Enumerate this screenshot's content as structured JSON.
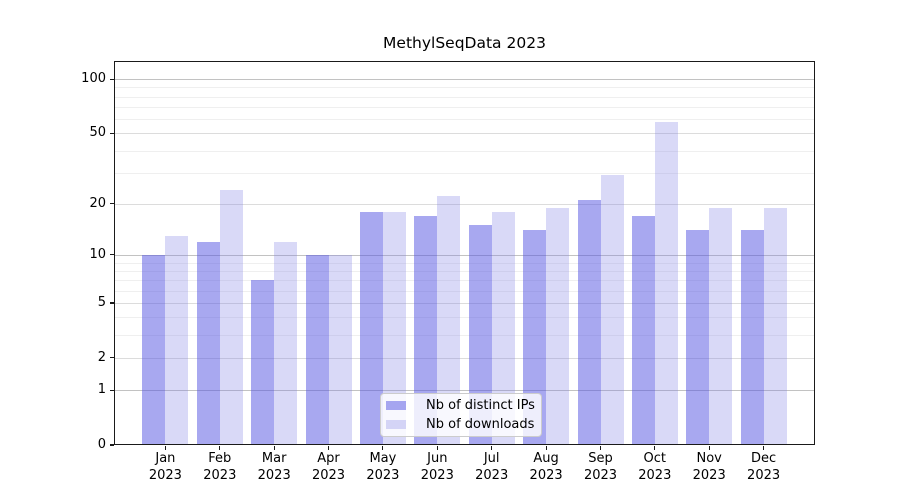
{
  "page": {
    "background": "#ffffff"
  },
  "chart_data": {
    "type": "bar",
    "title": "MethylSeqData 2023",
    "categories": [
      "Jan",
      "Feb",
      "Mar",
      "Apr",
      "May",
      "Jun",
      "Jul",
      "Aug",
      "Sep",
      "Oct",
      "Nov",
      "Dec"
    ],
    "category_year": "2023",
    "series": [
      {
        "key": "distinct-ips",
        "name": "Nb of distinct IPs",
        "color": "rgba(81,81,225,0.50)",
        "values": [
          10,
          12,
          7,
          10,
          18,
          17,
          15,
          14,
          21,
          17,
          14,
          14
        ]
      },
      {
        "key": "downloads",
        "name": "Nb of downloads",
        "color": "rgba(128,128,228,0.30)",
        "values": [
          13,
          24,
          12,
          10,
          18,
          22,
          18,
          19,
          29,
          58,
          19,
          19
        ]
      }
    ],
    "y_axis": {
      "scale": "log1p",
      "tick_values": [
        0,
        1,
        2,
        5,
        10,
        20,
        50,
        100
      ],
      "emphasized_ticks": [
        1,
        10,
        100
      ],
      "minor_gridlines": [
        3,
        4,
        6,
        7,
        8,
        9,
        30,
        40,
        60,
        70,
        80,
        90
      ],
      "max": 126,
      "ylim": [
        0,
        126
      ]
    },
    "x_axis": {
      "ticks_per_month": true
    },
    "legend": {
      "position": "bottom-center"
    },
    "grid": true,
    "colors": {
      "grid_major": "#c2c2c2",
      "grid_labeled": "#dcdcdc",
      "grid_minor": "#efefef",
      "spine": "#1a1a1a"
    }
  }
}
